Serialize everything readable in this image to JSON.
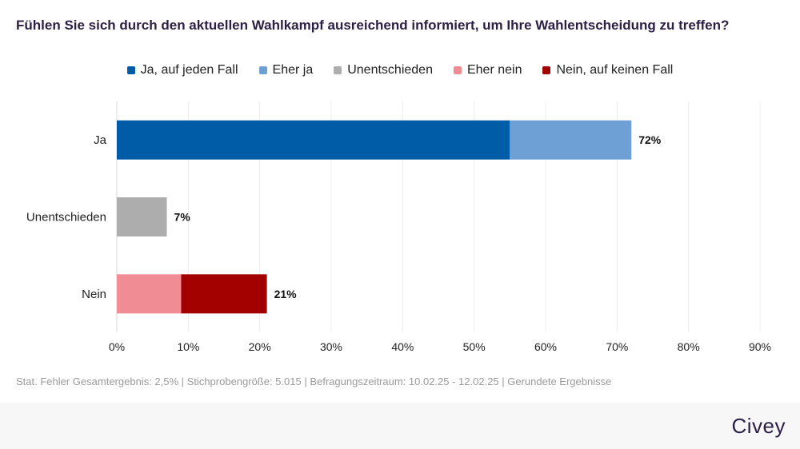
{
  "title": "Fühlen Sie sich durch den aktuellen Wahlkampf ausreichend informiert, um Ihre Wahlentscheidung zu treffen?",
  "legend": [
    {
      "label": "Ja, auf jeden Fall",
      "color": "#015ca8"
    },
    {
      "label": "Eher ja",
      "color": "#6ea0d6"
    },
    {
      "label": "Unentschieden",
      "color": "#adadad"
    },
    {
      "label": "Eher nein",
      "color": "#f08c93"
    },
    {
      "label": "Nein, auf keinen Fall",
      "color": "#a30000"
    }
  ],
  "chart_data": {
    "type": "bar",
    "orientation": "horizontal",
    "stacked": true,
    "categories": [
      "Ja",
      "Unentschieden",
      "Nein"
    ],
    "series": [
      {
        "name": "Ja, auf jeden Fall",
        "color": "#015ca8",
        "values": [
          55,
          0,
          0
        ]
      },
      {
        "name": "Eher ja",
        "color": "#6ea0d6",
        "values": [
          17,
          0,
          0
        ]
      },
      {
        "name": "Unentschieden",
        "color": "#adadad",
        "values": [
          0,
          7,
          0
        ]
      },
      {
        "name": "Eher nein",
        "color": "#f08c93",
        "values": [
          0,
          0,
          9
        ]
      },
      {
        "name": "Nein, auf keinen Fall",
        "color": "#a30000",
        "values": [
          0,
          0,
          12
        ]
      }
    ],
    "totals": [
      "72%",
      "7%",
      "21%"
    ],
    "xlim": [
      0,
      90
    ],
    "xticks": [
      "0%",
      "10%",
      "20%",
      "30%",
      "40%",
      "50%",
      "60%",
      "70%",
      "80%",
      "90%"
    ],
    "grid": true,
    "legend_position": "top"
  },
  "footer": "Stat. Fehler Gesamtergebnis: 2,5% | Stichprobengröße: 5.015 | Befragungszeitraum: 10.02.25 - 12.02.25 | Gerundete Ergebnisse",
  "brand": "Civey"
}
